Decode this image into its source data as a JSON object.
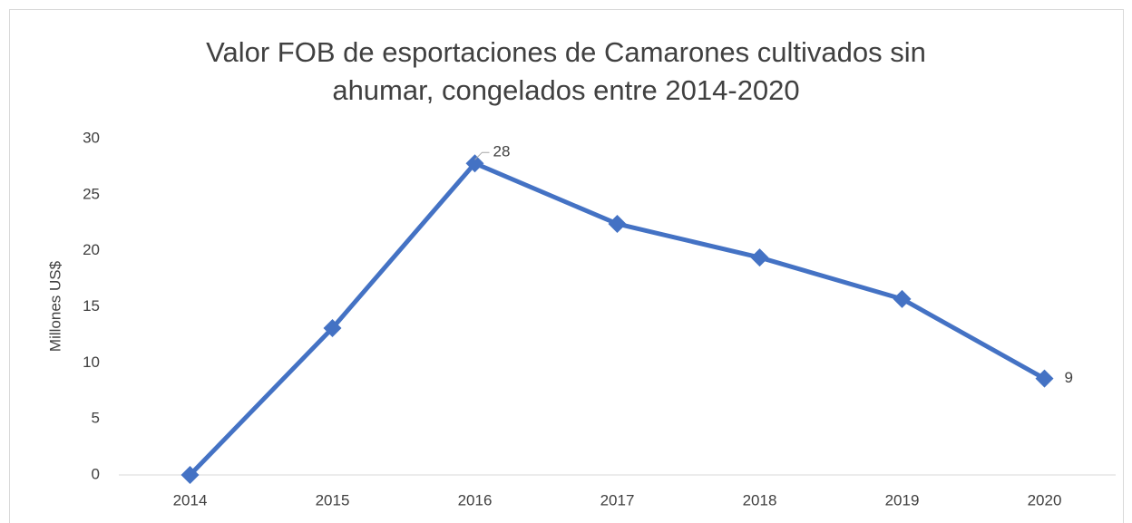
{
  "chart_data": {
    "type": "line",
    "title": [
      "Valor FOB de esportaciones de Camarones cultivados sin",
      "ahumar, congelados entre 2014-2020"
    ],
    "y_label": "Millones US$",
    "categories": [
      "2014",
      "2015",
      "2016",
      "2017",
      "2018",
      "2019",
      "2020"
    ],
    "series": [
      {
        "name": "Valor FOB",
        "color": "#4472c4",
        "values": [
          0,
          13.1,
          27.8,
          22.4,
          19.4,
          15.7,
          8.6
        ],
        "value_labels": [
          null,
          null,
          "28",
          null,
          null,
          null,
          "9"
        ]
      }
    ],
    "ylim": [
      0,
      30
    ],
    "yticks": [
      0,
      5,
      10,
      15,
      20,
      25,
      30
    ],
    "grid": false
  }
}
